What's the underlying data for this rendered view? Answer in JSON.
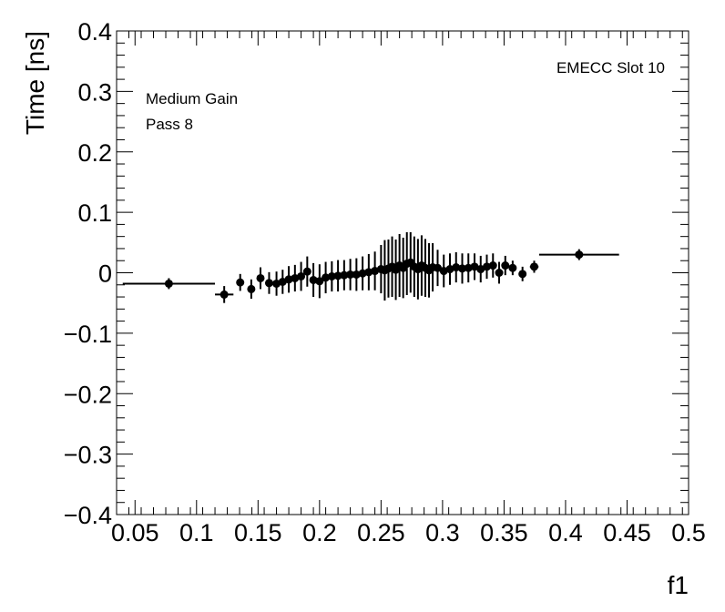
{
  "chart_data": {
    "type": "scatter",
    "title": "",
    "xlabel": "f1",
    "ylabel": "Time [ns]",
    "xlim": [
      0.035,
      0.5
    ],
    "ylim": [
      -0.4,
      0.4
    ],
    "grid": false,
    "legend": "none",
    "annotations": {
      "label_top_right": "EMECC Slot 10",
      "label_gain": "Medium Gain",
      "label_pass": "Pass 8"
    },
    "x_ticks": [
      0.05,
      0.1,
      0.15,
      0.2,
      0.25,
      0.3,
      0.35,
      0.4,
      0.45,
      0.5
    ],
    "x_tick_labels": [
      "0.05",
      "0.1",
      "0.15",
      "0.2",
      "0.25",
      "0.3",
      "0.35",
      "0.4",
      "0.45",
      "0.5"
    ],
    "y_ticks": [
      -0.4,
      -0.3,
      -0.2,
      -0.1,
      0,
      0.1,
      0.2,
      0.3,
      0.4
    ],
    "y_tick_labels": [
      "−0.4",
      "−0.3",
      "−0.2",
      "−0.1",
      "0",
      "0.1",
      "0.2",
      "0.3",
      "0.4"
    ],
    "series": [
      {
        "marker_color": "#000000",
        "points": [
          {
            "x": 0.0775,
            "y": -0.018,
            "xerr": 0.0375,
            "yerr": 0.009
          },
          {
            "x": 0.1225,
            "y": -0.036,
            "xerr": 0.0075,
            "yerr": 0.014
          },
          {
            "x": 0.1355,
            "y": -0.016,
            "xerr": 0.0025,
            "yerr": 0.014
          },
          {
            "x": 0.1445,
            "y": -0.027,
            "xerr": 0.0025,
            "yerr": 0.016
          },
          {
            "x": 0.152,
            "y": -0.009,
            "xerr": 0.002,
            "yerr": 0.018
          },
          {
            "x": 0.159,
            "y": -0.017,
            "xerr": 0.002,
            "yerr": 0.018
          },
          {
            "x": 0.165,
            "y": -0.018,
            "xerr": 0.0015,
            "yerr": 0.02
          },
          {
            "x": 0.17,
            "y": -0.015,
            "xerr": 0.0015,
            "yerr": 0.02
          },
          {
            "x": 0.175,
            "y": -0.011,
            "xerr": 0.0015,
            "yerr": 0.022
          },
          {
            "x": 0.18,
            "y": -0.009,
            "xerr": 0.0015,
            "yerr": 0.022
          },
          {
            "x": 0.185,
            "y": -0.006,
            "xerr": 0.0015,
            "yerr": 0.024
          },
          {
            "x": 0.19,
            "y": 0.002,
            "xerr": 0.0015,
            "yerr": 0.025
          },
          {
            "x": 0.195,
            "y": -0.012,
            "xerr": 0.0015,
            "yerr": 0.028
          },
          {
            "x": 0.2,
            "y": -0.014,
            "xerr": 0.0015,
            "yerr": 0.028
          },
          {
            "x": 0.205,
            "y": -0.008,
            "xerr": 0.0015,
            "yerr": 0.026
          },
          {
            "x": 0.21,
            "y": -0.006,
            "xerr": 0.0015,
            "yerr": 0.025
          },
          {
            "x": 0.215,
            "y": -0.005,
            "xerr": 0.0015,
            "yerr": 0.026
          },
          {
            "x": 0.22,
            "y": -0.004,
            "xerr": 0.0015,
            "yerr": 0.025
          },
          {
            "x": 0.225,
            "y": -0.003,
            "xerr": 0.0015,
            "yerr": 0.026
          },
          {
            "x": 0.23,
            "y": -0.003,
            "xerr": 0.0015,
            "yerr": 0.027
          },
          {
            "x": 0.235,
            "y": -0.001,
            "xerr": 0.0015,
            "yerr": 0.028
          },
          {
            "x": 0.24,
            "y": 0.001,
            "xerr": 0.0015,
            "yerr": 0.03
          },
          {
            "x": 0.245,
            "y": 0.003,
            "xerr": 0.0015,
            "yerr": 0.032
          },
          {
            "x": 0.25,
            "y": 0.006,
            "xerr": 0.001,
            "yerr": 0.04
          },
          {
            "x": 0.253,
            "y": 0.004,
            "xerr": 0.001,
            "yerr": 0.05
          },
          {
            "x": 0.256,
            "y": 0.007,
            "xerr": 0.001,
            "yerr": 0.048
          },
          {
            "x": 0.259,
            "y": 0.01,
            "xerr": 0.001,
            "yerr": 0.05
          },
          {
            "x": 0.262,
            "y": 0.005,
            "xerr": 0.001,
            "yerr": 0.05
          },
          {
            "x": 0.265,
            "y": 0.012,
            "xerr": 0.001,
            "yerr": 0.052
          },
          {
            "x": 0.268,
            "y": 0.008,
            "xerr": 0.001,
            "yerr": 0.05
          },
          {
            "x": 0.271,
            "y": 0.015,
            "xerr": 0.001,
            "yerr": 0.052
          },
          {
            "x": 0.274,
            "y": 0.017,
            "xerr": 0.001,
            "yerr": 0.05
          },
          {
            "x": 0.277,
            "y": 0.01,
            "xerr": 0.001,
            "yerr": 0.05
          },
          {
            "x": 0.28,
            "y": 0.006,
            "xerr": 0.001,
            "yerr": 0.05
          },
          {
            "x": 0.283,
            "y": 0.012,
            "xerr": 0.001,
            "yerr": 0.05
          },
          {
            "x": 0.286,
            "y": 0.008,
            "xerr": 0.001,
            "yerr": 0.048
          },
          {
            "x": 0.289,
            "y": 0.004,
            "xerr": 0.001,
            "yerr": 0.045
          },
          {
            "x": 0.292,
            "y": 0.009,
            "xerr": 0.001,
            "yerr": 0.04
          },
          {
            "x": 0.296,
            "y": 0.008,
            "xerr": 0.0015,
            "yerr": 0.03
          },
          {
            "x": 0.301,
            "y": 0.003,
            "xerr": 0.0015,
            "yerr": 0.027
          },
          {
            "x": 0.306,
            "y": 0.006,
            "xerr": 0.0015,
            "yerr": 0.026
          },
          {
            "x": 0.311,
            "y": 0.009,
            "xerr": 0.0015,
            "yerr": 0.025
          },
          {
            "x": 0.316,
            "y": 0.007,
            "xerr": 0.0015,
            "yerr": 0.025
          },
          {
            "x": 0.321,
            "y": 0.008,
            "xerr": 0.0015,
            "yerr": 0.024
          },
          {
            "x": 0.326,
            "y": 0.01,
            "xerr": 0.0015,
            "yerr": 0.022
          },
          {
            "x": 0.331,
            "y": 0.006,
            "xerr": 0.0015,
            "yerr": 0.022
          },
          {
            "x": 0.336,
            "y": 0.01,
            "xerr": 0.0015,
            "yerr": 0.02
          },
          {
            "x": 0.341,
            "y": 0.012,
            "xerr": 0.0015,
            "yerr": 0.02
          },
          {
            "x": 0.346,
            "y": 0.0,
            "xerr": 0.0015,
            "yerr": 0.018
          },
          {
            "x": 0.351,
            "y": 0.012,
            "xerr": 0.0015,
            "yerr": 0.016
          },
          {
            "x": 0.357,
            "y": 0.008,
            "xerr": 0.002,
            "yerr": 0.012
          },
          {
            "x": 0.365,
            "y": -0.002,
            "xerr": 0.0025,
            "yerr": 0.012
          },
          {
            "x": 0.3745,
            "y": 0.01,
            "xerr": 0.0035,
            "yerr": 0.01
          },
          {
            "x": 0.411,
            "y": 0.03,
            "xerr": 0.0325,
            "yerr": 0.009
          }
        ]
      }
    ]
  }
}
